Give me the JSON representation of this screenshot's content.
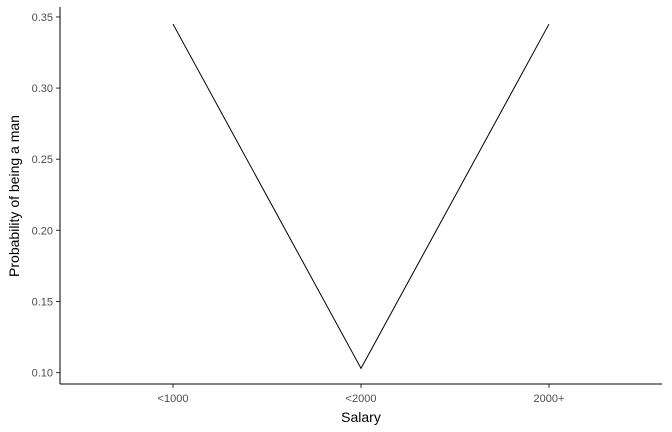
{
  "chart_data": {
    "type": "line",
    "categories": [
      "<1000",
      "<2000",
      "2000+"
    ],
    "series": [
      {
        "values": [
          0.345,
          0.103,
          0.345
        ]
      }
    ],
    "xlabel": "Salary",
    "ylabel": "Probability of being a man",
    "ylim": [
      0.092,
      0.357
    ],
    "yticks": [
      "0.10",
      "0.15",
      "0.20",
      "0.25",
      "0.30",
      "0.35"
    ],
    "grid": false,
    "colors": {
      "line": "#000000",
      "axis": "#000000",
      "tick_text": "#4d4d4d"
    }
  }
}
